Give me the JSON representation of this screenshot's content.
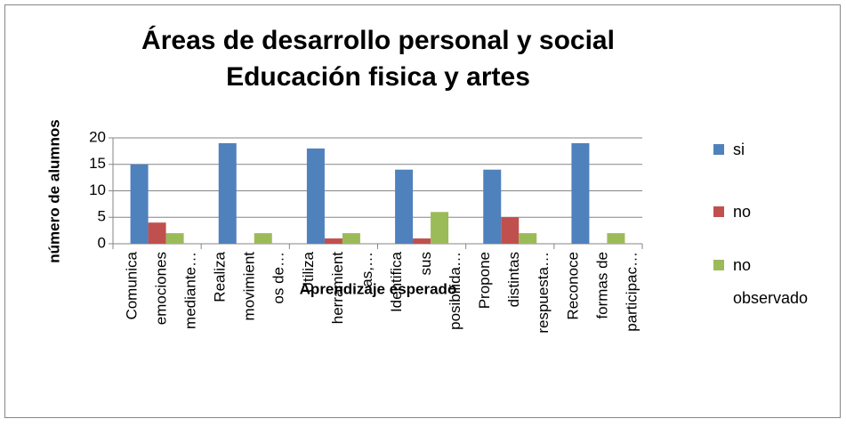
{
  "chart_data": {
    "type": "bar",
    "title": [
      "Áreas de desarrollo personal y social",
      "Educación fisica y artes"
    ],
    "x_label": "Aprendizaje esperado",
    "y_label": "número de alumnos",
    "categories": [
      [
        "Comunica",
        "emociones",
        "mediante…"
      ],
      [
        "Realiza",
        "movimient",
        "os de…"
      ],
      [
        "Utiliza",
        "herramient",
        "as,…"
      ],
      [
        "Identifica",
        "sus",
        "posibilida…"
      ],
      [
        "Propone",
        "distintas",
        "respuesta…"
      ],
      [
        "Reconoce",
        "formas de",
        "participac…"
      ]
    ],
    "series": [
      {
        "name": "si",
        "color": "#4f81bd",
        "values": [
          15,
          19,
          18,
          14,
          14,
          19
        ]
      },
      {
        "name": "no",
        "color": "#c0504d",
        "values": [
          4,
          0,
          1,
          1,
          5,
          0
        ]
      },
      {
        "name": "no observado",
        "color": "#9bbb59",
        "values": [
          2,
          2,
          2,
          6,
          2,
          2
        ]
      }
    ],
    "ylim": [
      0,
      20
    ],
    "yticks": [
      0,
      5,
      10,
      15,
      20
    ],
    "grid": true,
    "legend": "right"
  }
}
